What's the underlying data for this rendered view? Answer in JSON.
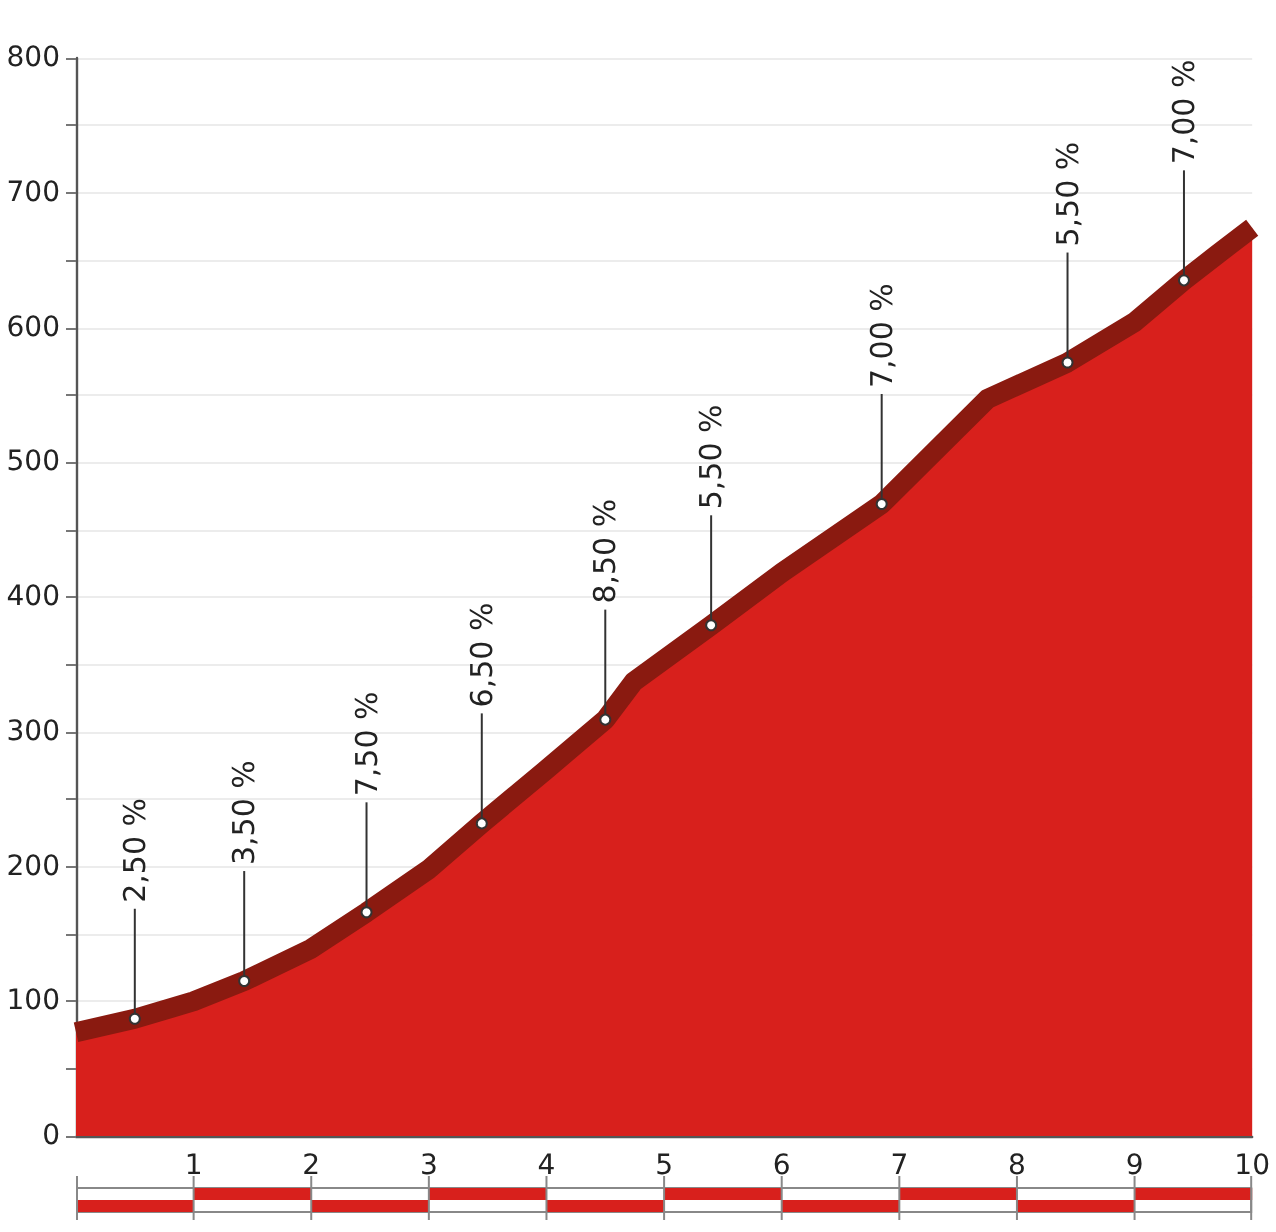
{
  "chart_data": {
    "type": "area",
    "x": [
      0,
      0.5,
      1,
      1.43,
      2,
      2.47,
      3,
      3.45,
      4,
      4.5,
      4.74,
      5.4,
      6,
      6.85,
      7.75,
      8.43,
      9,
      9.42,
      9.7,
      10
    ],
    "series": [
      {
        "color": "#d8201c",
        "values": [
          77,
          87,
          100,
          115,
          139,
          166,
          198,
          232,
          272,
          309,
          337,
          379,
          418,
          469,
          547,
          574,
          604,
          635,
          654,
          674
        ]
      }
    ],
    "xlim": [
      0,
      10
    ],
    "xticks": [
      {
        "value": 0,
        "label": null
      },
      1,
      2,
      3,
      4,
      5,
      6,
      7,
      8,
      9,
      10
    ],
    "ylim": [
      0,
      800
    ],
    "yticks": [
      0,
      {
        "value": 50,
        "label": null
      },
      100,
      {
        "value": 150,
        "label": null
      },
      200,
      {
        "value": 250,
        "label": null
      },
      300,
      {
        "value": 350,
        "label": null
      },
      400,
      {
        "value": 450,
        "label": null
      },
      500,
      {
        "value": 550,
        "label": null
      },
      600,
      {
        "value": 650,
        "label": null
      },
      700,
      {
        "value": 750,
        "label": null
      },
      800
    ],
    "grid": "y",
    "marker": "none",
    "annotations": [
      {
        "text": "2,50 %",
        "x": 0.5,
        "y": 87
      },
      {
        "text": "3,50 %",
        "x": 1.43,
        "y": 115
      },
      {
        "text": "7,50 %",
        "x": 2.47,
        "y": 166
      },
      {
        "text": "6,50 %",
        "x": 3.45,
        "y": 232
      },
      {
        "text": "8,50 %",
        "x": 4.5,
        "y": 309
      },
      {
        "text": "5,50 %",
        "x": 5.4,
        "y": 379
      },
      {
        "text": "7,00 %",
        "x": 6.85,
        "y": 469
      },
      {
        "text": "5,50 %",
        "x": 8.43,
        "y": 574
      },
      {
        "text": "7,00 %",
        "x": 9.42,
        "y": 635
      }
    ]
  }
}
